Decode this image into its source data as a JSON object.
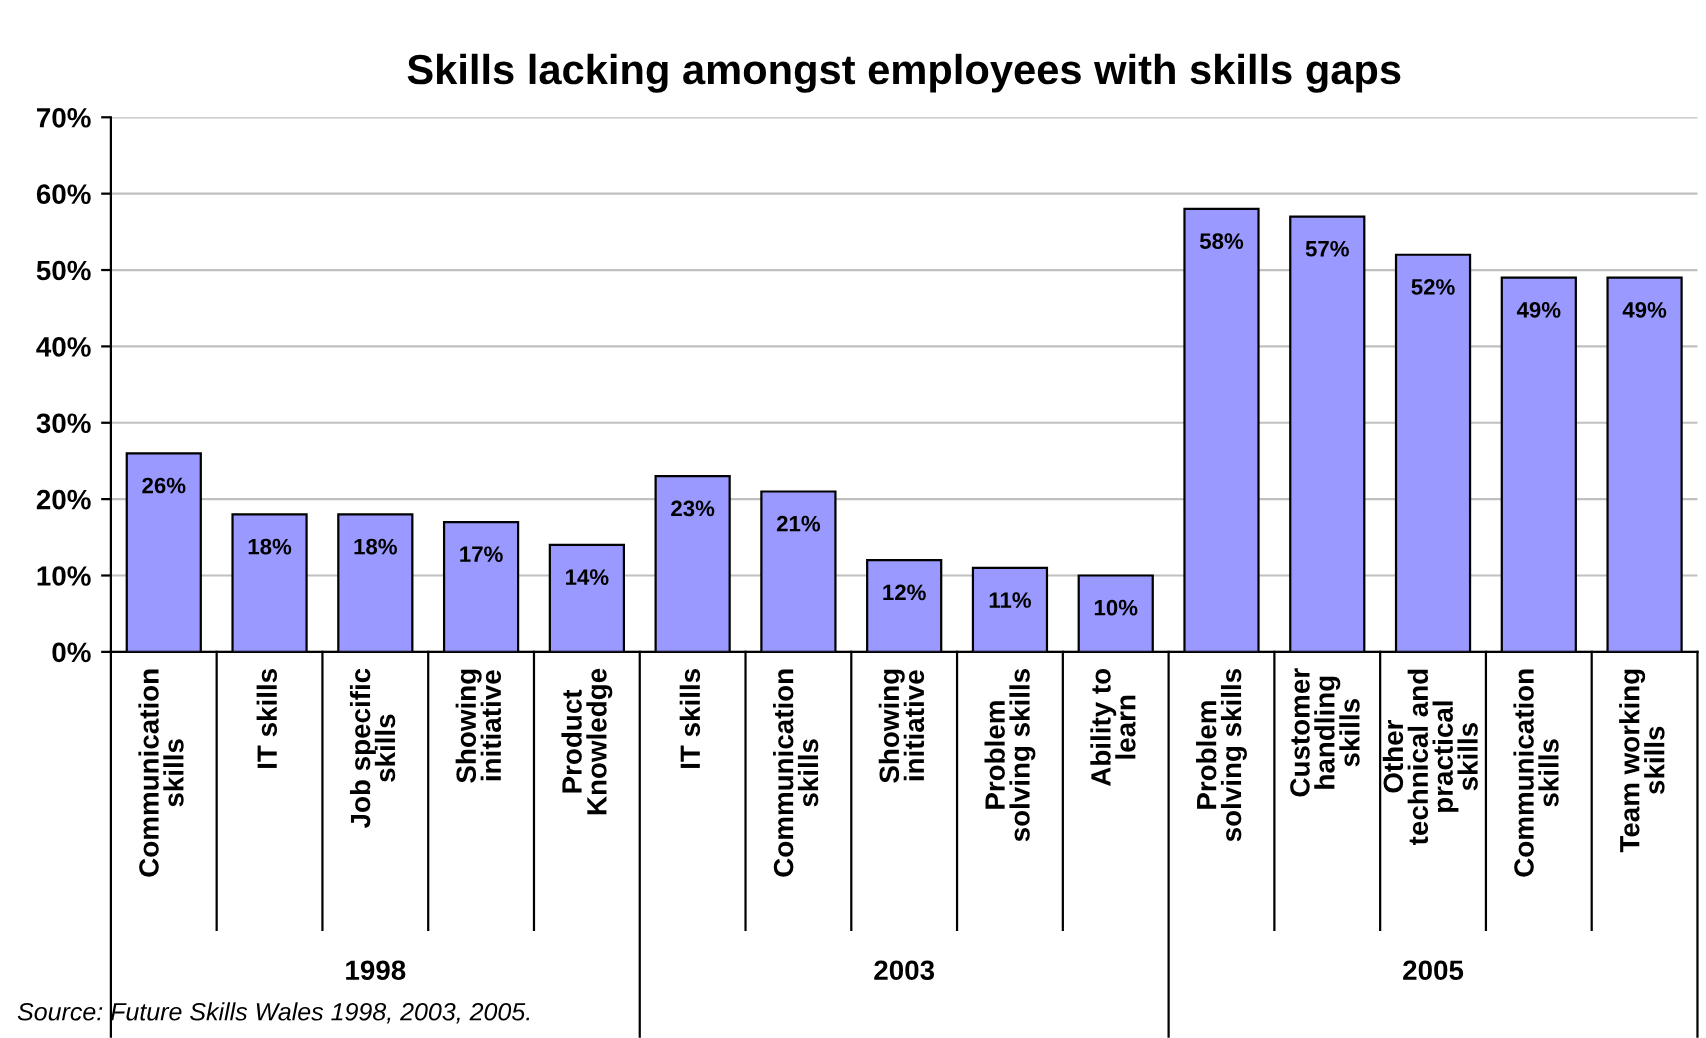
{
  "chart_data": {
    "type": "bar",
    "title": "Skills lacking amongst employees with skills gaps",
    "categories": [
      "Communication skills",
      "IT skills",
      "Job specific skills",
      "Showing initiative",
      "Product Knowledge",
      "IT skills",
      "Communication skills",
      "Showing initiative",
      "Problem solving skills",
      "Ability to learn",
      "Problem solving skills",
      "Customer handling skills",
      "Other technical and practical skills",
      "Communication skills",
      "Team working skills"
    ],
    "values": [
      26,
      18,
      18,
      17,
      14,
      23,
      21,
      12,
      11,
      10,
      58,
      57,
      52,
      49,
      49
    ],
    "color": "#9999ff",
    "value_labels": [
      "26%",
      "18%",
      "18%",
      "17%",
      "14%",
      "23%",
      "21%",
      "12%",
      "11%",
      "10%",
      "58%",
      "57%",
      "52%",
      "49%",
      "49%"
    ],
    "ylim": [
      0,
      70
    ],
    "yticks": [
      {
        "value": 0,
        "label": "0%"
      },
      {
        "value": 10,
        "label": "10%"
      },
      {
        "value": 20,
        "label": "20%"
      },
      {
        "value": 30,
        "label": "30%"
      },
      {
        "value": 40,
        "label": "40%"
      },
      {
        "value": 50,
        "label": "50%"
      },
      {
        "value": 60,
        "label": "60%"
      },
      {
        "value": 70,
        "label": "70%"
      }
    ],
    "grid": "y",
    "annotations": [
      "1998",
      "2003",
      "2005",
      "Source: Future Skills Wales 1998, 2003, 2005."
    ]
  }
}
